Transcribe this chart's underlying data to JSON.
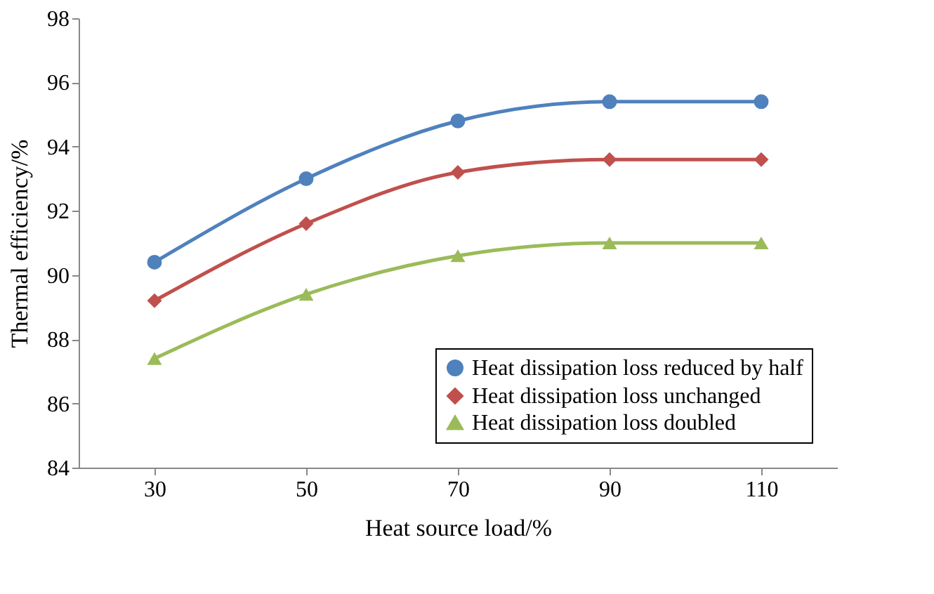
{
  "chart_data": {
    "type": "line",
    "xlabel": "Heat source load/%",
    "ylabel": "Thermal efficiency/%",
    "categories": [
      "30",
      "50",
      "70",
      "90",
      "110"
    ],
    "series": [
      {
        "name": "Heat dissipation loss reduced by half",
        "color": "#4f81bd",
        "marker": "circle",
        "values": [
          90.4,
          93.0,
          94.8,
          95.4,
          95.4
        ]
      },
      {
        "name": "Heat dissipation loss unchanged",
        "color": "#c0504d",
        "marker": "diamond",
        "values": [
          89.2,
          91.6,
          93.2,
          93.6,
          93.6
        ]
      },
      {
        "name": "Heat dissipation loss doubled",
        "color": "#9bbb59",
        "marker": "triangle",
        "values": [
          87.4,
          89.4,
          90.6,
          91.0,
          91.0
        ]
      }
    ],
    "ylim": [
      84,
      98
    ],
    "yticks": [
      84,
      86,
      88,
      90,
      92,
      94,
      96,
      98
    ],
    "grid": false,
    "legend": "bottom right",
    "line_style": "solid"
  }
}
